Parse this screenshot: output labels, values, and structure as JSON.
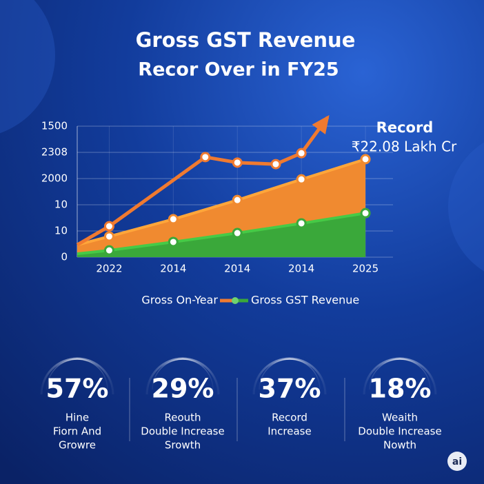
{
  "chart_data": {
    "type": "line",
    "title": [
      "Gross GST Revenue",
      "Recor Over in FY25"
    ],
    "xlim": [
      -0.5,
      4.43
    ],
    "xticks": [
      {
        "value": 0,
        "label": "2022"
      },
      {
        "value": 1,
        "label": "2014"
      },
      {
        "value": 2,
        "label": "2014"
      },
      {
        "value": 3,
        "label": "2014"
      },
      {
        "value": 4,
        "label": "2025"
      }
    ],
    "ylim": [
      0,
      5
    ],
    "yticks": [
      {
        "value": 0,
        "label": "0"
      },
      {
        "value": 1,
        "label": "10"
      },
      {
        "value": 2,
        "label": "10"
      },
      {
        "value": 3,
        "label": "2000"
      },
      {
        "value": 4,
        "label": "2308"
      },
      {
        "value": 5,
        "label": "1500"
      }
    ],
    "grid": true,
    "series": [
      {
        "color": "#f08a30",
        "style": "area",
        "x": [
          -0.5,
          0,
          1,
          2,
          3,
          4
        ],
        "values": [
          0.47,
          0.79,
          1.45,
          2.18,
          2.97,
          3.74
        ]
      },
      {
        "name": "Gross GST Revenue",
        "color": "#3aa83a",
        "style": "area",
        "x": [
          -0.5,
          0,
          1,
          2,
          3,
          4
        ],
        "values": [
          0.13,
          0.26,
          0.58,
          0.92,
          1.29,
          1.68
        ]
      },
      {
        "name": "Gross On-Year",
        "color": "#f07a30",
        "style": "line",
        "arrow": true,
        "x": [
          -0.5,
          0,
          1.5,
          2,
          2.6,
          3,
          3.41
        ],
        "values": [
          0.47,
          1.18,
          3.82,
          3.61,
          3.55,
          3.97,
          5.34
        ]
      }
    ],
    "annotation": [
      "Record",
      "₹22.08 Lakh Cr"
    ]
  },
  "stats": [
    {
      "value": "57%",
      "label": [
        "Hine",
        "Fiorn And",
        "Growre"
      ]
    },
    {
      "value": "29%",
      "label": [
        "Reouth",
        "Double Increase",
        "Srowth"
      ]
    },
    {
      "value": "37%",
      "label": [
        "Record",
        "Increase"
      ]
    },
    {
      "value": "18%",
      "label": [
        "Weaith",
        "Double Increase",
        "Nowth"
      ]
    }
  ],
  "badge": "ai"
}
